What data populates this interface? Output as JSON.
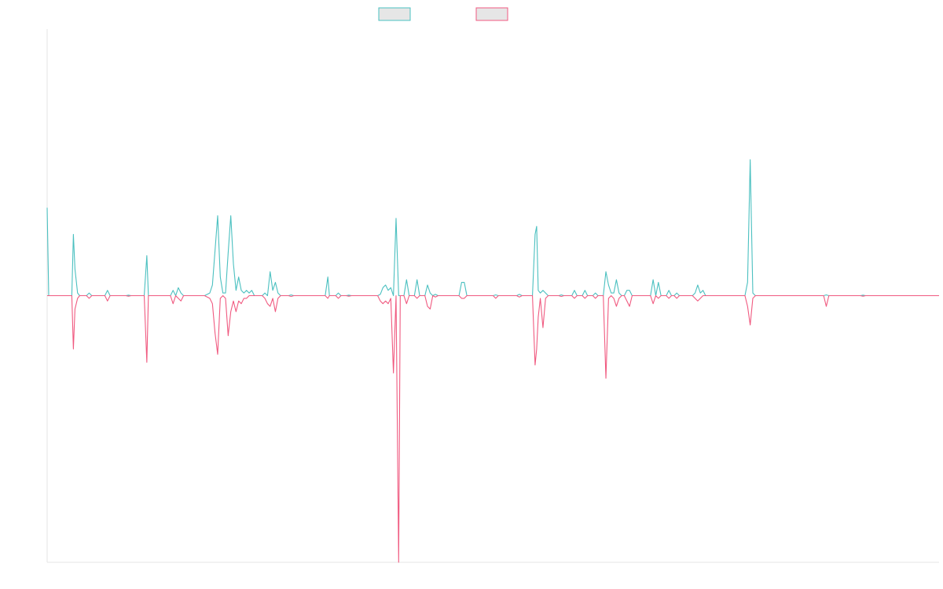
{
  "chart_data": {
    "type": "line",
    "title": "",
    "xlabel": "",
    "ylabel": "",
    "grid": false,
    "legend_position": "top-center",
    "ylim": [
      -100,
      100
    ],
    "series": [
      {
        "name": "",
        "color": "#4bc0c0",
        "fill": "#e6e6e6",
        "points": [
          [
            0,
            33
          ],
          [
            0.3,
            0
          ],
          [
            4.7,
            0
          ],
          [
            5,
            23
          ],
          [
            5.3,
            10
          ],
          [
            5.8,
            1
          ],
          [
            6.2,
            0
          ],
          [
            7.5,
            0
          ],
          [
            8,
            1
          ],
          [
            8.5,
            0
          ],
          [
            11,
            0
          ],
          [
            11.5,
            2
          ],
          [
            12,
            0
          ],
          [
            15,
            0
          ],
          [
            15.5,
            0.2
          ],
          [
            16,
            0
          ],
          [
            18.5,
            0
          ],
          [
            19,
            15
          ],
          [
            19.3,
            0
          ],
          [
            23.5,
            0
          ],
          [
            24,
            2
          ],
          [
            24.5,
            0
          ],
          [
            25,
            3
          ],
          [
            25.5,
            1
          ],
          [
            26,
            0
          ],
          [
            30,
            0
          ],
          [
            31,
            1
          ],
          [
            31.5,
            4
          ],
          [
            32,
            17
          ],
          [
            32.5,
            30
          ],
          [
            33,
            7
          ],
          [
            33.5,
            1
          ],
          [
            34,
            1
          ],
          [
            34.5,
            16
          ],
          [
            35,
            30
          ],
          [
            35.5,
            12
          ],
          [
            36,
            2
          ],
          [
            36.5,
            7
          ],
          [
            37,
            2
          ],
          [
            37.5,
            1
          ],
          [
            38,
            2
          ],
          [
            38.5,
            1
          ],
          [
            39,
            2
          ],
          [
            39.5,
            0
          ],
          [
            41,
            0
          ],
          [
            41.5,
            1
          ],
          [
            42,
            0
          ],
          [
            42.5,
            9
          ],
          [
            43,
            2
          ],
          [
            43.5,
            5
          ],
          [
            44,
            1
          ],
          [
            44.5,
            0
          ],
          [
            46,
            0
          ],
          [
            46.5,
            0.3
          ],
          [
            47,
            0
          ],
          [
            53,
            0
          ],
          [
            53.5,
            7
          ],
          [
            53.8,
            0
          ],
          [
            55,
            0
          ],
          [
            55.5,
            1
          ],
          [
            56,
            0
          ],
          [
            57,
            0
          ],
          [
            57.5,
            0.2
          ],
          [
            58,
            0
          ],
          [
            63,
            0
          ],
          [
            63.5,
            0.5
          ],
          [
            64,
            3
          ],
          [
            64.5,
            4
          ],
          [
            65,
            2
          ],
          [
            65.5,
            3
          ],
          [
            66,
            0
          ],
          [
            66.5,
            29
          ],
          [
            67,
            0
          ],
          [
            68,
            0
          ],
          [
            68.5,
            6
          ],
          [
            69,
            0
          ],
          [
            70,
            0
          ],
          [
            70.5,
            6
          ],
          [
            71,
            0
          ],
          [
            72,
            0
          ],
          [
            72.5,
            4
          ],
          [
            73,
            1
          ],
          [
            73.5,
            0
          ],
          [
            74,
            0.5
          ],
          [
            74.5,
            0
          ],
          [
            78.5,
            0
          ],
          [
            79,
            5
          ],
          [
            79.5,
            5
          ],
          [
            80,
            0
          ],
          [
            85,
            0
          ],
          [
            85.5,
            0.3
          ],
          [
            86,
            0
          ],
          [
            89.5,
            0
          ],
          [
            90,
            0.5
          ],
          [
            90.5,
            0
          ],
          [
            92.5,
            0
          ],
          [
            93,
            23
          ],
          [
            93.3,
            26
          ],
          [
            93.6,
            2
          ],
          [
            94,
            1
          ],
          [
            94.5,
            2
          ],
          [
            95,
            1
          ],
          [
            95.5,
            0
          ],
          [
            97.5,
            0
          ],
          [
            98,
            0.3
          ],
          [
            98.5,
            0
          ],
          [
            100,
            0
          ],
          [
            100.5,
            2
          ],
          [
            101,
            0
          ],
          [
            102,
            0
          ],
          [
            102.5,
            2
          ],
          [
            103,
            0
          ],
          [
            104,
            0
          ],
          [
            104.5,
            1
          ],
          [
            105,
            0
          ],
          [
            106,
            0
          ],
          [
            106.5,
            9
          ],
          [
            107,
            4
          ],
          [
            107.5,
            1
          ],
          [
            108,
            1
          ],
          [
            108.5,
            6
          ],
          [
            109,
            1
          ],
          [
            109.5,
            0
          ],
          [
            110,
            0
          ],
          [
            110.5,
            2
          ],
          [
            111,
            2
          ],
          [
            111.5,
            0
          ],
          [
            115,
            0
          ],
          [
            115.5,
            6
          ],
          [
            116,
            0
          ],
          [
            116.5,
            5
          ],
          [
            117,
            0
          ],
          [
            118,
            0
          ],
          [
            118.5,
            2
          ],
          [
            119,
            0
          ],
          [
            119.5,
            0
          ],
          [
            120,
            1
          ],
          [
            120.5,
            0
          ],
          [
            123,
            0
          ],
          [
            123.5,
            1
          ],
          [
            124,
            4
          ],
          [
            124.5,
            1
          ],
          [
            125,
            2
          ],
          [
            125.5,
            0
          ],
          [
            133,
            0
          ],
          [
            133.5,
            5
          ],
          [
            134,
            51
          ],
          [
            134.5,
            1
          ],
          [
            135,
            0
          ],
          [
            140,
            0
          ],
          [
            148,
            0
          ],
          [
            148.5,
            0.3
          ],
          [
            149,
            0
          ],
          [
            155,
            0
          ],
          [
            155.5,
            0.2
          ],
          [
            156,
            0
          ],
          [
            170,
            0
          ]
        ]
      },
      {
        "name": "",
        "color": "#f05a80",
        "fill": "#e6e6e6",
        "points": [
          [
            0,
            0
          ],
          [
            4.7,
            0
          ],
          [
            5,
            -20
          ],
          [
            5.3,
            -5
          ],
          [
            5.8,
            -1
          ],
          [
            6.2,
            0
          ],
          [
            7.5,
            0
          ],
          [
            8,
            -1
          ],
          [
            8.5,
            0
          ],
          [
            11,
            0
          ],
          [
            11.5,
            -2
          ],
          [
            12,
            0
          ],
          [
            15,
            0
          ],
          [
            15.5,
            -0.2
          ],
          [
            16,
            0
          ],
          [
            18.5,
            0
          ],
          [
            19,
            -25
          ],
          [
            19.3,
            0
          ],
          [
            23.5,
            0
          ],
          [
            24,
            -3
          ],
          [
            24.5,
            0
          ],
          [
            25,
            -1
          ],
          [
            25.5,
            -2
          ],
          [
            26,
            0
          ],
          [
            30,
            0
          ],
          [
            31,
            -1
          ],
          [
            31.5,
            -3
          ],
          [
            32,
            -14
          ],
          [
            32.5,
            -22
          ],
          [
            33,
            -1
          ],
          [
            33.5,
            0
          ],
          [
            34,
            -1
          ],
          [
            34.5,
            -15
          ],
          [
            35,
            -6
          ],
          [
            35.5,
            -2
          ],
          [
            36,
            -6
          ],
          [
            36.5,
            -2
          ],
          [
            37,
            -3
          ],
          [
            37.5,
            -1
          ],
          [
            38,
            -1
          ],
          [
            38.5,
            0
          ],
          [
            41,
            0
          ],
          [
            41.5,
            -1
          ],
          [
            42,
            -3
          ],
          [
            42.5,
            -4
          ],
          [
            43,
            -1
          ],
          [
            43.5,
            -6
          ],
          [
            44,
            -1
          ],
          [
            44.5,
            0
          ],
          [
            46,
            0
          ],
          [
            46.5,
            -0.3
          ],
          [
            47,
            0
          ],
          [
            53,
            0
          ],
          [
            53.5,
            -1
          ],
          [
            53.8,
            0
          ],
          [
            55,
            0
          ],
          [
            55.5,
            -1
          ],
          [
            56,
            0
          ],
          [
            57,
            0
          ],
          [
            57.5,
            -0.2
          ],
          [
            58,
            0
          ],
          [
            63,
            0
          ],
          [
            63.5,
            -2
          ],
          [
            64,
            -3
          ],
          [
            64.5,
            -2
          ],
          [
            65,
            -3
          ],
          [
            65.5,
            -1
          ],
          [
            66,
            -29
          ],
          [
            66.5,
            0
          ],
          [
            67,
            -100
          ],
          [
            67.3,
            0
          ],
          [
            68,
            0
          ],
          [
            68.5,
            -3
          ],
          [
            69,
            0
          ],
          [
            70,
            0
          ],
          [
            70.5,
            -1
          ],
          [
            71,
            0
          ],
          [
            72,
            0
          ],
          [
            72.5,
            -4
          ],
          [
            73,
            -5
          ],
          [
            73.5,
            0
          ],
          [
            74,
            -0.5
          ],
          [
            74.5,
            0
          ],
          [
            78.5,
            0
          ],
          [
            79,
            -1
          ],
          [
            79.5,
            -1
          ],
          [
            80,
            0
          ],
          [
            85,
            0
          ],
          [
            85.5,
            -1
          ],
          [
            86,
            0
          ],
          [
            89.5,
            0
          ],
          [
            90,
            -0.5
          ],
          [
            90.5,
            0
          ],
          [
            92.5,
            0
          ],
          [
            93,
            -26
          ],
          [
            93.3,
            -20
          ],
          [
            93.6,
            -8
          ],
          [
            94,
            -1
          ],
          [
            94.5,
            -12
          ],
          [
            95,
            -1
          ],
          [
            95.5,
            0
          ],
          [
            97.5,
            0
          ],
          [
            98,
            -0.3
          ],
          [
            98.5,
            0
          ],
          [
            100,
            0
          ],
          [
            100.5,
            -1
          ],
          [
            101,
            0
          ],
          [
            102,
            0
          ],
          [
            102.5,
            -1
          ],
          [
            103,
            0
          ],
          [
            104,
            0
          ],
          [
            104.5,
            -1
          ],
          [
            105,
            0
          ],
          [
            106,
            0
          ],
          [
            106.5,
            -31
          ],
          [
            107,
            -1
          ],
          [
            107.5,
            0
          ],
          [
            108,
            -1
          ],
          [
            108.5,
            -4
          ],
          [
            109,
            -1
          ],
          [
            109.5,
            0
          ],
          [
            110,
            0
          ],
          [
            110.5,
            -2
          ],
          [
            111,
            -4
          ],
          [
            111.5,
            0
          ],
          [
            115,
            0
          ],
          [
            115.5,
            -3
          ],
          [
            116,
            0
          ],
          [
            116.5,
            -1
          ],
          [
            117,
            0
          ],
          [
            118,
            0
          ],
          [
            118.5,
            -1
          ],
          [
            119,
            0
          ],
          [
            119.5,
            0
          ],
          [
            120,
            -1
          ],
          [
            120.5,
            0
          ],
          [
            123,
            0
          ],
          [
            123.5,
            -1
          ],
          [
            124,
            -2
          ],
          [
            124.5,
            -1
          ],
          [
            125,
            0
          ],
          [
            133,
            0
          ],
          [
            133.5,
            -4
          ],
          [
            134,
            -11
          ],
          [
            134.5,
            -1
          ],
          [
            135,
            0
          ],
          [
            140,
            0
          ],
          [
            148,
            0
          ],
          [
            148.5,
            -4
          ],
          [
            149,
            0
          ],
          [
            155,
            0
          ],
          [
            155.5,
            -0.2
          ],
          [
            156,
            0
          ],
          [
            170,
            0
          ]
        ]
      }
    ]
  }
}
